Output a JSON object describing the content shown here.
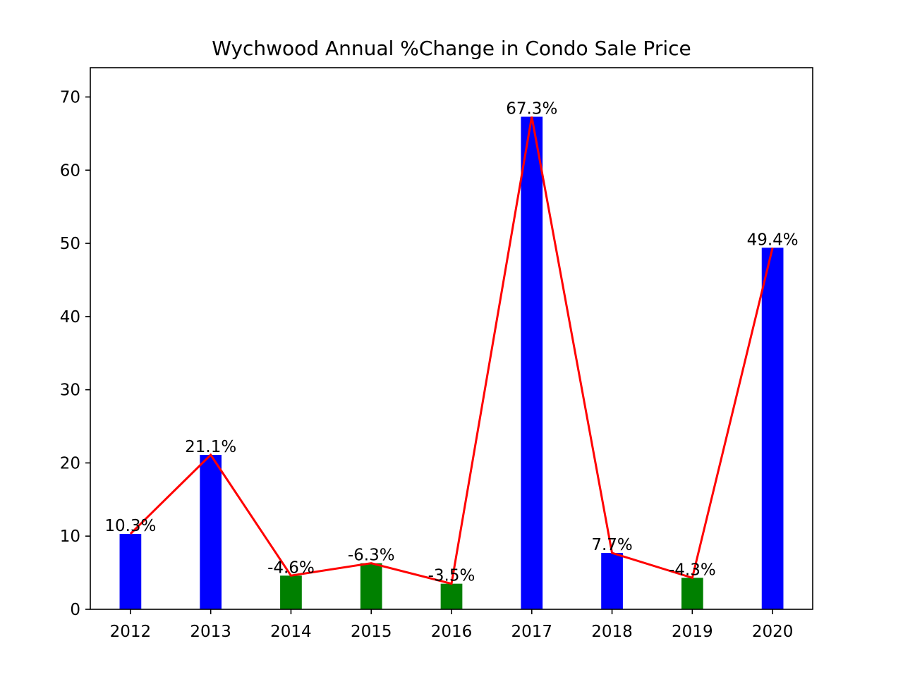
{
  "chart_data": {
    "type": "bar",
    "title": "Wychwood Annual %Change in Condo Sale Price",
    "xlabel": "",
    "ylabel": "",
    "categories": [
      "2012",
      "2013",
      "2014",
      "2015",
      "2016",
      "2017",
      "2018",
      "2019",
      "2020"
    ],
    "values": [
      10.3,
      21.1,
      4.6,
      6.3,
      3.5,
      67.3,
      7.7,
      4.3,
      49.4
    ],
    "labels": [
      "10.3%",
      "21.1%",
      "-4.6%",
      "-6.3%",
      "-3.5%",
      "67.3%",
      "7.7%",
      "-4.3%",
      "49.4%"
    ],
    "bar_colors": [
      "#0000ff",
      "#0000ff",
      "#008000",
      "#008000",
      "#008000",
      "#0000ff",
      "#0000ff",
      "#008000",
      "#0000ff"
    ],
    "line_color": "#ff0000",
    "yticks": [
      0,
      10,
      20,
      30,
      40,
      50,
      60,
      70
    ],
    "ylim": [
      0,
      74
    ],
    "grid": false,
    "legend": "none"
  }
}
